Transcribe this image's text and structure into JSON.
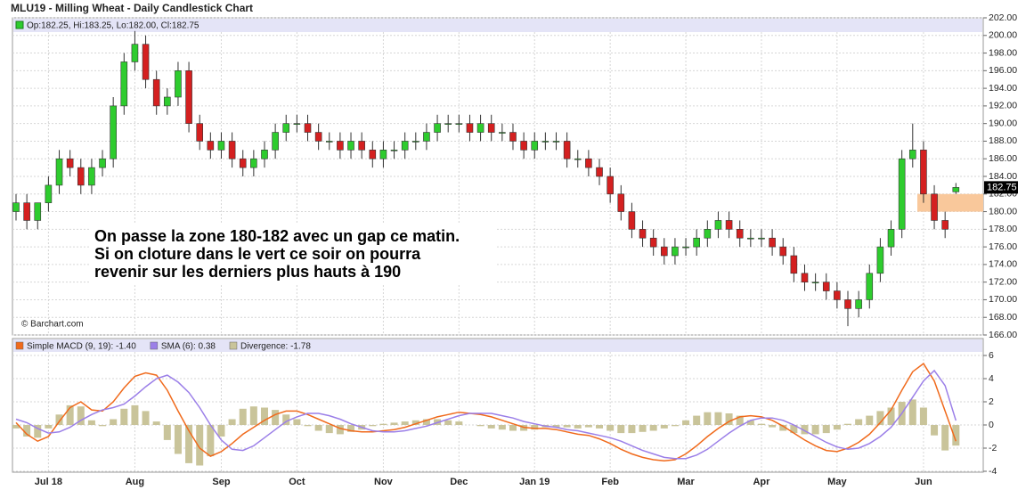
{
  "chart_data": [
    {
      "type": "candlestick",
      "title": "MLU19 - Milling Wheat - Daily Candlestick Chart",
      "ohlc_legend": "Op:182.25, Hi:183.25, Lo:182.00, Cl:182.75",
      "source": "© Barchart.com",
      "annotation": [
        "On passe la zone 180-182 avec un gap ce matin.",
        "Si on cloture dans le vert ce soir on pourra",
        "revenir sur les derniers plus hauts à 190"
      ],
      "up_color": "#2ecc2e",
      "down_color": "#d42020",
      "highlight": {
        "from": 180,
        "to": 182,
        "color": "#f9c89b"
      },
      "last_price": {
        "value": 182.75,
        "label": "182.75"
      },
      "categories": [
        null,
        null,
        null,
        "Jul 18",
        null,
        null,
        null,
        null,
        null,
        null,
        null,
        "Aug",
        null,
        null,
        null,
        null,
        null,
        null,
        null,
        "Sep",
        null,
        null,
        null,
        null,
        null,
        null,
        "Oct",
        null,
        null,
        null,
        null,
        null,
        null,
        null,
        "Nov",
        null,
        null,
        null,
        null,
        null,
        null,
        "Dec",
        null,
        null,
        null,
        null,
        null,
        null,
        "Jan 19",
        null,
        null,
        null,
        null,
        null,
        null,
        "Feb",
        null,
        null,
        null,
        null,
        null,
        null,
        "Mar",
        null,
        null,
        null,
        null,
        null,
        null,
        "Apr",
        null,
        null,
        null,
        null,
        null,
        null,
        "May",
        null,
        null,
        null,
        null,
        null,
        null,
        null,
        "Jun",
        null,
        null,
        null
      ],
      "open": [
        180,
        181,
        179,
        181,
        183,
        186,
        185,
        183,
        185,
        186,
        192,
        197,
        199,
        195,
        192,
        193,
        196,
        190,
        188,
        187,
        188,
        186,
        185,
        186,
        187,
        189,
        190,
        190,
        189,
        188,
        188,
        187,
        188,
        187,
        186,
        187,
        187,
        188,
        188,
        189,
        190,
        190,
        190,
        189,
        190,
        189,
        189,
        188,
        187,
        188,
        188,
        188,
        186,
        186,
        185,
        184,
        182,
        180,
        178,
        177,
        176,
        175,
        176,
        176,
        177,
        178,
        179,
        178,
        177,
        177,
        177,
        176,
        175,
        173,
        172,
        172,
        171,
        170,
        169,
        170,
        173,
        176,
        178,
        186,
        187,
        182,
        179,
        182.25
      ],
      "high": [
        182,
        182,
        181,
        184,
        187,
        187,
        186,
        186,
        187,
        193,
        198,
        200.5,
        200,
        196,
        194,
        197,
        197,
        191,
        189,
        189,
        189,
        187,
        187,
        188,
        190,
        191,
        191,
        191,
        190,
        189,
        189,
        189,
        189,
        188,
        188,
        188,
        189,
        189,
        190,
        191,
        191,
        191,
        191,
        191,
        191,
        190,
        190,
        189,
        189,
        189,
        189,
        189,
        187,
        187,
        186,
        185,
        183,
        181,
        179,
        178,
        177,
        177,
        177,
        178,
        179,
        180,
        180,
        179,
        178,
        178,
        178,
        177,
        176,
        174,
        173,
        173,
        172,
        171,
        171,
        174,
        177,
        179,
        187,
        190,
        188,
        183,
        180,
        183.25
      ],
      "low": [
        179,
        178,
        178,
        180,
        182,
        184,
        182,
        182,
        184,
        185,
        191,
        196,
        194,
        191,
        191,
        192,
        189,
        187,
        186,
        186,
        185,
        184,
        184,
        185,
        186,
        188,
        189,
        188,
        187,
        187,
        186,
        186,
        186,
        185,
        185,
        186,
        186,
        187,
        187,
        188,
        189,
        189,
        188,
        188,
        188,
        188,
        187,
        186,
        186,
        187,
        187,
        185,
        185,
        184,
        183,
        181,
        179,
        177,
        176,
        175,
        174,
        174,
        175,
        175,
        176,
        177,
        177,
        176,
        176,
        176,
        175,
        174,
        172,
        171,
        171,
        170,
        169,
        167,
        168,
        169,
        172,
        175,
        177,
        185,
        181,
        178,
        177,
        182
      ],
      "close": [
        181,
        179,
        181,
        183,
        186,
        185,
        183,
        185,
        186,
        192,
        197,
        199,
        195,
        192,
        193,
        196,
        190,
        188,
        187,
        188,
        186,
        185,
        186,
        187,
        189,
        190,
        190,
        189,
        188,
        188,
        187,
        188,
        187,
        186,
        187,
        187,
        188,
        188,
        189,
        190,
        190,
        190,
        189,
        190,
        189,
        189,
        188,
        187,
        188,
        188,
        188,
        186,
        186,
        185,
        184,
        182,
        180,
        178,
        177,
        176,
        175,
        176,
        176,
        177,
        178,
        179,
        178,
        177,
        177,
        177,
        176,
        175,
        173,
        172,
        172,
        171,
        170,
        169,
        170,
        173,
        176,
        178,
        186,
        187,
        182,
        179,
        178,
        182.75
      ],
      "ylim": [
        166,
        202
      ],
      "yticks": [
        {
          "value": 166,
          "label": "166.00"
        },
        {
          "value": 168,
          "label": "168.00"
        },
        {
          "value": 170,
          "label": "170.00"
        },
        {
          "value": 172,
          "label": "172.00"
        },
        {
          "value": 174,
          "label": "174.00"
        },
        {
          "value": 176,
          "label": "176.00"
        },
        {
          "value": 178,
          "label": "178.00"
        },
        {
          "value": 180,
          "label": "180.00"
        },
        {
          "value": 182,
          "label": "182.00"
        },
        {
          "value": 184,
          "label": "184.00"
        },
        {
          "value": 186,
          "label": "186.00"
        },
        {
          "value": 188,
          "label": "188.00"
        },
        {
          "value": 190,
          "label": "190.00"
        },
        {
          "value": 192,
          "label": "192.00"
        },
        {
          "value": 194,
          "label": "194.00"
        },
        {
          "value": 196,
          "label": "196.00"
        },
        {
          "value": 198,
          "label": "198.00"
        },
        {
          "value": 200,
          "label": "200.00"
        },
        {
          "value": 202,
          "label": "202.00"
        }
      ],
      "grid": true
    },
    {
      "type": "combo",
      "series": [
        {
          "name": "Simple MACD (9, 19): -1.40",
          "kind": "line",
          "color": "#f06a1c",
          "values": [
            0.2,
            -0.8,
            -1.4,
            -1,
            0.3,
            1.5,
            2,
            1.3,
            1.2,
            2,
            3.2,
            4.2,
            4.5,
            4.3,
            3,
            1.2,
            -0.5,
            -2,
            -2.7,
            -2.3,
            -1.6,
            -0.8,
            -0.2,
            0.4,
            0.9,
            1.2,
            1.2,
            0.9,
            0.5,
            0.1,
            -0.3,
            -0.5,
            -0.6,
            -0.6,
            -0.5,
            -0.4,
            -0.2,
            0.1,
            0.4,
            0.7,
            0.9,
            1.1,
            1,
            0.9,
            0.7,
            0.4,
            0.1,
            -0.2,
            -0.3,
            -0.3,
            -0.4,
            -0.6,
            -0.8,
            -0.9,
            -1.2,
            -1.6,
            -2.1,
            -2.5,
            -2.8,
            -3,
            -3.1,
            -3,
            -2.5,
            -1.8,
            -1,
            -0.3,
            0.3,
            0.7,
            0.8,
            0.7,
            0.4,
            -0.1,
            -0.7,
            -1.3,
            -1.8,
            -2.2,
            -2.3,
            -2,
            -1.5,
            -0.8,
            0.2,
            1.3,
            3,
            4.6,
            5.3,
            3.8,
            1.2,
            -1.4
          ]
        },
        {
          "name": "SMA (6): 0.38",
          "kind": "line",
          "color": "#9b7fe8",
          "values": [
            0.5,
            0.2,
            -0.3,
            -0.7,
            -0.6,
            -0.2,
            0.4,
            0.9,
            1.3,
            1.5,
            1.8,
            2.5,
            3.3,
            4,
            4.3,
            3.7,
            2.8,
            1.5,
            0,
            -1.3,
            -2.1,
            -2.2,
            -1.8,
            -1.1,
            -0.4,
            0.3,
            0.7,
            1,
            1,
            0.8,
            0.5,
            0.1,
            -0.2,
            -0.5,
            -0.6,
            -0.6,
            -0.5,
            -0.3,
            -0.1,
            0.2,
            0.5,
            0.8,
            1,
            1,
            1,
            0.8,
            0.6,
            0.3,
            0.1,
            -0.1,
            -0.2,
            -0.4,
            -0.5,
            -0.7,
            -0.9,
            -1.1,
            -1.4,
            -1.8,
            -2.2,
            -2.5,
            -2.8,
            -2.9,
            -2.9,
            -2.6,
            -2.1,
            -1.4,
            -0.7,
            -0.1,
            0.4,
            0.6,
            0.6,
            0.4,
            0,
            -0.5,
            -1,
            -1.5,
            -1.9,
            -2.1,
            -2,
            -1.6,
            -1,
            -0.2,
            1,
            2.4,
            3.8,
            4.7,
            3.4,
            0.38
          ]
        },
        {
          "name": "Divergence: -1.78",
          "kind": "bar",
          "color": "#c9c49a",
          "values": [
            -0.3,
            -1,
            -1.1,
            -0.3,
            0.9,
            1.7,
            1.6,
            0.4,
            -0.1,
            0.5,
            1.4,
            1.7,
            1.2,
            0.3,
            -1.3,
            -2.5,
            -3.3,
            -3.5,
            -2.7,
            -1,
            0.5,
            1.4,
            1.6,
            1.5,
            1.3,
            0.9,
            0.5,
            -0.1,
            -0.5,
            -0.7,
            -0.8,
            -0.6,
            -0.4,
            -0.1,
            0.1,
            0.2,
            0.3,
            0.4,
            0.5,
            0.5,
            0.4,
            0.3,
            0,
            -0.1,
            -0.3,
            -0.4,
            -0.5,
            -0.5,
            -0.4,
            -0.2,
            -0.2,
            -0.2,
            -0.3,
            -0.2,
            -0.3,
            -0.5,
            -0.7,
            -0.7,
            -0.6,
            -0.5,
            -0.3,
            -0.1,
            0.4,
            0.8,
            1.1,
            1.1,
            1,
            0.8,
            0.4,
            0.1,
            -0.2,
            -0.5,
            -0.7,
            -0.8,
            -0.8,
            -0.7,
            -0.4,
            0.1,
            0.5,
            0.8,
            1.2,
            1.5,
            2,
            2.2,
            1.5,
            -0.9,
            -2.2,
            -1.78
          ]
        }
      ],
      "ylim": [
        -4,
        6
      ],
      "yticks": [
        -4,
        -2,
        0,
        2,
        4,
        6
      ],
      "grid": true
    }
  ]
}
